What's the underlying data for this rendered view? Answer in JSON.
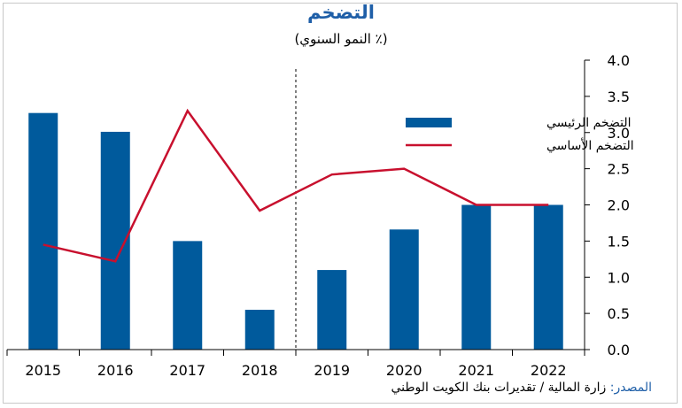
{
  "chart_data": {
    "type": "bar",
    "title": "التضخم",
    "subtitle": "(٪ النمو السنوي)",
    "categories": [
      "2015",
      "2016",
      "2017",
      "2018",
      "2019",
      "2020",
      "2021",
      "2022"
    ],
    "series": [
      {
        "name": "التضخم الرئيسي",
        "kind": "bar",
        "color": "#005a9c",
        "values": [
          3.27,
          3.01,
          1.5,
          0.55,
          1.1,
          1.66,
          2.0,
          2.0
        ]
      },
      {
        "name": "التضخم الأساسي",
        "kind": "line",
        "color": "#c8102e",
        "values": [
          1.45,
          1.22,
          3.3,
          1.92,
          2.42,
          2.5,
          2.0,
          2.0
        ]
      }
    ],
    "ylim": [
      0,
      4
    ],
    "yticks": [
      "0.0",
      "0.5",
      "1.0",
      "1.5",
      "2.0",
      "2.5",
      "3.0",
      "3.5",
      "4.0"
    ],
    "y_axis_side": "right",
    "forecast_divider_between": [
      "2018",
      "2019"
    ],
    "legend_position": "top-right"
  },
  "source": {
    "label": "المصدر:",
    "text": "زارة المالية / تقديرات بنك الكويت الوطني"
  }
}
